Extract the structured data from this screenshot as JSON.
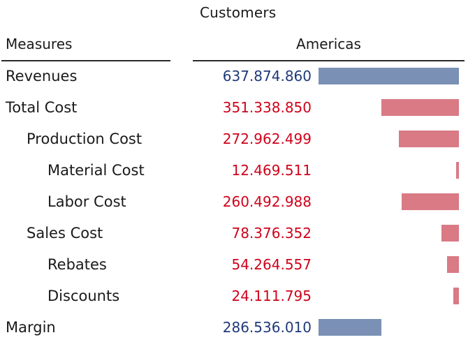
{
  "header": {
    "dimension_label": "Customers",
    "measures_label": "Measures",
    "column_label": "Americas"
  },
  "colors": {
    "positive_bar": "#7a90b5",
    "negative_bar": "#d97a85",
    "positive_text": "#1f3a7a",
    "negative_text": "#d0021b"
  },
  "chart_data": {
    "type": "bar",
    "title": "",
    "xlabel": "",
    "ylabel": "",
    "categories": [
      "Revenues",
      "Total Cost",
      "Production Cost",
      "Material Cost",
      "Labor Cost",
      "Sales Cost",
      "Rebates",
      "Discounts",
      "Margin"
    ],
    "series": [
      {
        "name": "Americas",
        "values": [
          637874860,
          351338850,
          272962499,
          12469511,
          260492988,
          78376352,
          54264557,
          24111795,
          286536010
        ],
        "display": [
          "637.874.860",
          "351.338.850",
          "272.962.499",
          "12.469.511",
          "260.492.988",
          "78.376.352",
          "54.264.557",
          "24.111.795",
          "286.536.010"
        ],
        "sign": [
          "positive",
          "negative",
          "negative",
          "negative",
          "negative",
          "negative",
          "negative",
          "negative",
          "positive"
        ]
      }
    ],
    "hierarchy_levels": [
      0,
      0,
      1,
      2,
      2,
      1,
      2,
      2,
      0
    ],
    "grid": false,
    "legend": "none"
  }
}
